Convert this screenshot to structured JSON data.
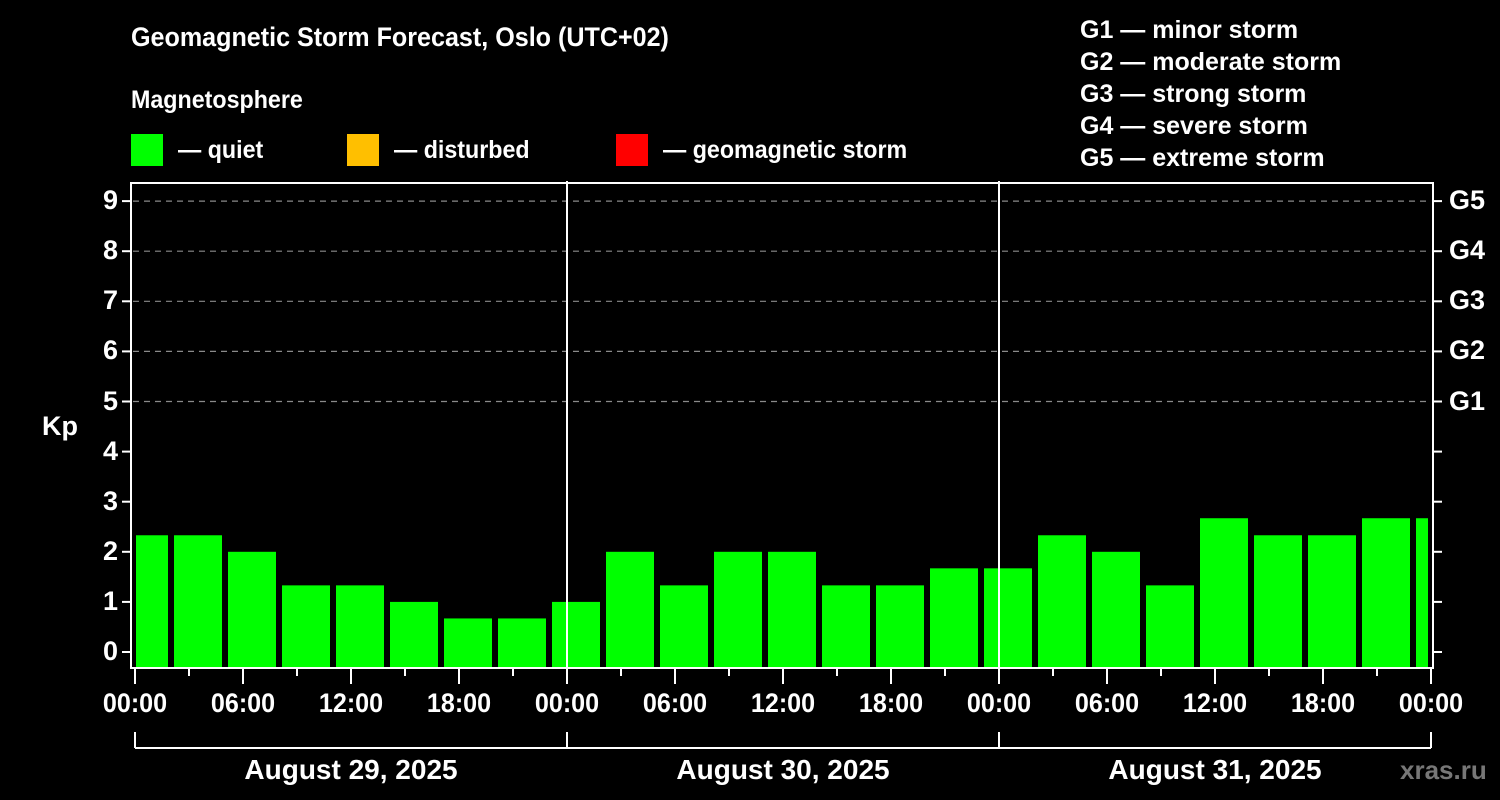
{
  "header": {
    "title": "Geomagnetic Storm Forecast, Oslo (UTC+02)",
    "subtitle": "Magnetosphere"
  },
  "legend": {
    "items": [
      {
        "label": "— quiet",
        "color": "#00ff00"
      },
      {
        "label": "— disturbed",
        "color": "#ffbf00"
      },
      {
        "label": "— geomagnetic storm",
        "color": "#ff0000"
      }
    ]
  },
  "storm_scale": {
    "items": [
      {
        "label": "G1 — minor storm"
      },
      {
        "label": "G2 — moderate storm"
      },
      {
        "label": "G3 — strong storm"
      },
      {
        "label": "G4 — severe storm"
      },
      {
        "label": "G5 — extreme storm"
      }
    ]
  },
  "axes": {
    "ylabel": "Kp",
    "yticks": [
      "0",
      "1",
      "2",
      "3",
      "4",
      "5",
      "6",
      "7",
      "8",
      "9"
    ],
    "gticks": [
      {
        "label": "G1",
        "kp": 5
      },
      {
        "label": "G2",
        "kp": 6
      },
      {
        "label": "G3",
        "kp": 7
      },
      {
        "label": "G4",
        "kp": 8
      },
      {
        "label": "G5",
        "kp": 9
      }
    ],
    "xticks": [
      "00:00",
      "06:00",
      "12:00",
      "18:00",
      "00:00",
      "06:00",
      "12:00",
      "18:00",
      "00:00",
      "06:00",
      "12:00",
      "18:00",
      "00:00"
    ],
    "dates": [
      "August 29, 2025",
      "August 30, 2025",
      "August 31, 2025"
    ]
  },
  "watermark": "xras.ru",
  "chart_data": {
    "type": "bar",
    "title": "Geomagnetic Storm Forecast, Oslo (UTC+02)",
    "subtitle": "Magnetosphere",
    "xlabel": "",
    "ylabel": "Kp",
    "ylim": [
      0,
      9
    ],
    "grid": "dashed horizontal at Kp 5-9",
    "legend": [
      "quiet",
      "disturbed",
      "geomagnetic storm"
    ],
    "legend_position": "top",
    "secondary_y_labels": {
      "5": "G1",
      "6": "G2",
      "7": "G3",
      "8": "G4",
      "9": "G5"
    },
    "x_start": "August 29, 2025 00:00 (UTC+02)",
    "x_end": "September 1, 2025 00:00 (UTC+02)",
    "categories": [
      "Aug 29 00:00-02:00",
      "Aug 29 02:00",
      "Aug 29 05:00",
      "Aug 29 08:00",
      "Aug 29 11:00",
      "Aug 29 14:00",
      "Aug 29 17:00",
      "Aug 29 20:00",
      "Aug 29 23:00",
      "Aug 30 02:00",
      "Aug 30 05:00",
      "Aug 30 08:00",
      "Aug 30 11:00",
      "Aug 30 14:00",
      "Aug 30 17:00",
      "Aug 30 20:00",
      "Aug 30 23:00",
      "Aug 31 02:00",
      "Aug 31 05:00",
      "Aug 31 08:00",
      "Aug 31 11:00",
      "Aug 31 14:00",
      "Aug 31 17:00",
      "Aug 31 20:00",
      "Aug 31 23:00-00:00"
    ],
    "series": [
      {
        "name": "Kp",
        "color": "#00ff00",
        "values": [
          2.33,
          2.33,
          2.0,
          1.33,
          1.33,
          1.0,
          0.67,
          0.67,
          1.0,
          2.0,
          1.33,
          2.0,
          2.0,
          1.33,
          1.33,
          1.67,
          1.67,
          2.33,
          2.0,
          1.33,
          2.67,
          2.33,
          2.33,
          2.67,
          2.67
        ],
        "status": "quiet"
      }
    ]
  }
}
